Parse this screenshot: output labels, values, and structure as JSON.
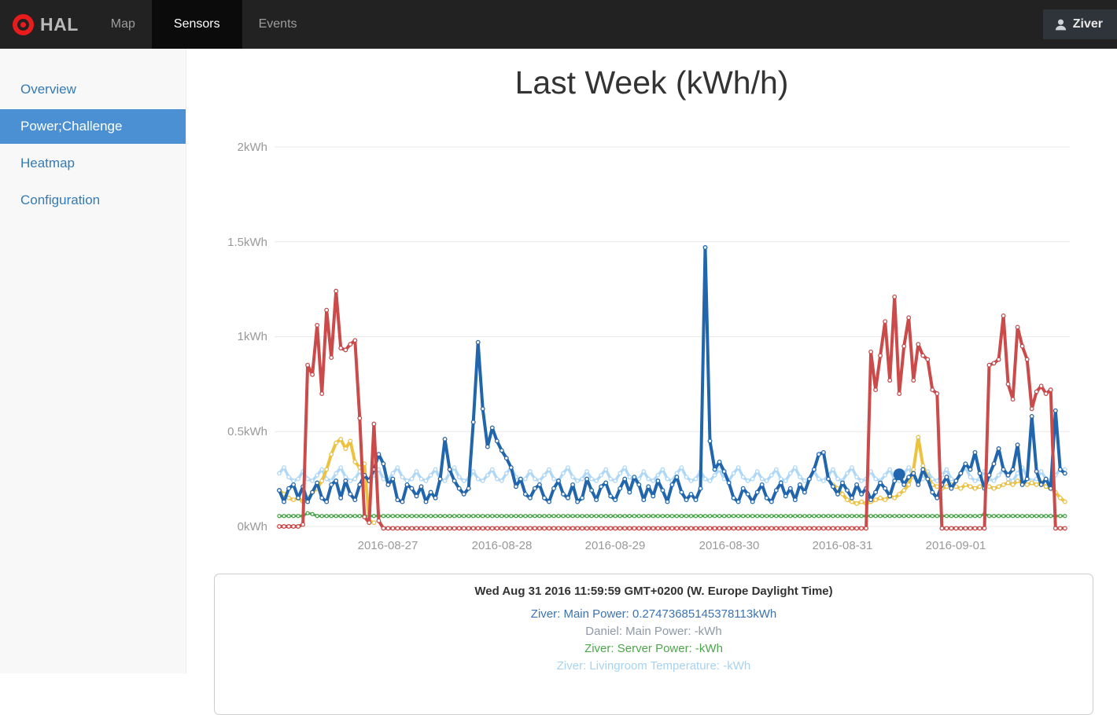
{
  "navbar": {
    "brand": "HAL",
    "items": [
      {
        "label": "Map",
        "active": false
      },
      {
        "label": "Sensors",
        "active": true
      },
      {
        "label": "Events",
        "active": false
      }
    ],
    "user": "Ziver"
  },
  "sidebar": {
    "items": [
      {
        "label": "Overview",
        "active": false
      },
      {
        "label": "Power;Challenge",
        "active": true
      },
      {
        "label": "Heatmap",
        "active": false
      },
      {
        "label": "Configuration",
        "active": false
      }
    ]
  },
  "main": {
    "title": "Last Week (kWh/h)"
  },
  "chart_data": {
    "type": "line",
    "title": "Last Week (kWh/h)",
    "ylim": [
      0,
      2
    ],
    "grid": "horizontal-only",
    "y_ticks": [
      {
        "label": "2kWh",
        "value": 2
      },
      {
        "label": "1.5kWh",
        "value": 1.5
      },
      {
        "label": "1kWh",
        "value": 1
      },
      {
        "label": "0.5kWh",
        "value": 0.5
      },
      {
        "label": "0kWh",
        "value": 0
      }
    ],
    "x_ticks": [
      {
        "label": "2016-08-27",
        "hour": 24
      },
      {
        "label": "2016-08-28",
        "hour": 48
      },
      {
        "label": "2016-08-29",
        "hour": 72
      },
      {
        "label": "2016-08-30",
        "hour": 96
      },
      {
        "label": "2016-08-31",
        "hour": 120
      },
      {
        "label": "2016-09-01",
        "hour": 144
      }
    ],
    "x_unit": "hours, day ticks every 24h",
    "selected_point": {
      "series": "Ziver: Main Power",
      "hour": 132,
      "value": 0.27473685145378113
    },
    "series": [
      {
        "key": "livingroom-temperature",
        "name": "Ziver: Livingroom Temperature",
        "color": "#afd8f8",
        "width": 3.5,
        "marker_r": 2.2,
        "start_hour": 1,
        "values": [
          0.28,
          0.31,
          0.26,
          0.24,
          0.25,
          0.29,
          0.25,
          0.24,
          0.27,
          0.3,
          0.25,
          0.24,
          0.28,
          0.31,
          0.26,
          0.24,
          0.25,
          0.29,
          0.25,
          0.24,
          0.27,
          0.3,
          0.25,
          0.24,
          0.28,
          0.31,
          0.26,
          0.24,
          0.25,
          0.29,
          0.25,
          0.24,
          0.27,
          0.3,
          0.25,
          0.24,
          0.28,
          0.31,
          0.26,
          0.24,
          0.25,
          0.29,
          0.25,
          0.24,
          0.27,
          0.3,
          0.25,
          0.24,
          0.28,
          0.31,
          0.26,
          0.24,
          0.25,
          0.29,
          0.25,
          0.24,
          0.27,
          0.3,
          0.25,
          0.24,
          0.28,
          0.31,
          0.26,
          0.24,
          0.25,
          0.29,
          0.25,
          0.24,
          0.27,
          0.3,
          0.25,
          0.24,
          0.28,
          0.31,
          0.26,
          0.24,
          0.25,
          0.29,
          0.25,
          0.24,
          0.27,
          0.3,
          0.25,
          0.24,
          0.28,
          0.31,
          0.26,
          0.24,
          0.25,
          0.29,
          0.25,
          0.24,
          0.27,
          0.3,
          0.25,
          0.24,
          0.28,
          0.31,
          0.26,
          0.24,
          0.25,
          0.29,
          0.25,
          0.24,
          0.27,
          0.3,
          0.25,
          0.24,
          0.28,
          0.31,
          0.26,
          0.24,
          0.25,
          0.29,
          0.25,
          0.24,
          0.27,
          0.3,
          0.25,
          0.24,
          0.28,
          0.31,
          0.26,
          0.24,
          0.25,
          0.29,
          0.25,
          0.24,
          0.27,
          0.3,
          0.25,
          0.24,
          0.28,
          0.31,
          0.26,
          0.24,
          0.25,
          0.29,
          0.25,
          0.24,
          0.27,
          0.3,
          0.25,
          0.24,
          0.28,
          0.31,
          0.26,
          0.24,
          0.25,
          0.29,
          0.25,
          0.24,
          0.27,
          0.3,
          0.25,
          0.24,
          0.28,
          0.31,
          0.26,
          0.24,
          0.25,
          0.29,
          0.25,
          0.24,
          0.27,
          0.3,
          0.3
        ]
      },
      {
        "key": "server-power",
        "name": "Ziver: Server Power",
        "color": "#4da74d",
        "width": 3,
        "marker_r": 2,
        "start_hour": 1,
        "values": [
          0.055,
          0.055,
          0.055,
          0.055,
          0.055,
          0.055,
          0.07,
          0.065,
          0.055,
          0.055,
          0.055,
          0.055,
          0.055,
          0.055,
          0.055,
          0.055,
          0.055,
          0.055,
          0.055,
          0.055,
          0.055,
          0.055,
          0.055,
          0.055,
          0.055,
          0.055,
          0.055,
          0.055,
          0.055,
          0.055,
          0.055,
          0.055,
          0.055,
          0.055,
          0.055,
          0.055,
          0.055,
          0.055,
          0.055,
          0.055,
          0.055,
          0.055,
          0.055,
          0.055,
          0.055,
          0.055,
          0.055,
          0.055,
          0.055,
          0.055,
          0.055,
          0.055,
          0.055,
          0.055,
          0.055,
          0.055,
          0.055,
          0.055,
          0.055,
          0.055,
          0.055,
          0.055,
          0.055,
          0.055,
          0.055,
          0.055,
          0.055,
          0.055,
          0.055,
          0.055,
          0.055,
          0.055,
          0.055,
          0.055,
          0.055,
          0.055,
          0.055,
          0.055,
          0.055,
          0.055,
          0.055,
          0.055,
          0.055,
          0.055,
          0.055,
          0.055,
          0.055,
          0.055,
          0.055,
          0.055,
          0.055,
          0.055,
          0.055,
          0.055,
          0.055,
          0.055,
          0.055,
          0.055,
          0.055,
          0.055,
          0.055,
          0.055,
          0.055,
          0.055,
          0.055,
          0.055,
          0.055,
          0.055,
          0.055,
          0.055,
          0.055,
          0.055,
          0.055,
          0.055,
          0.055,
          0.055,
          0.055,
          0.055,
          0.055,
          0.055,
          0.055,
          0.055,
          0.055,
          0.055,
          0.055,
          0.055,
          0.055,
          0.055,
          0.055,
          0.055,
          0.055,
          0.055,
          0.055,
          0.055,
          0.055,
          0.055,
          0.055,
          0.055,
          0.055,
          0.055,
          0.055,
          0.055,
          0.055,
          0.055,
          0.055,
          0.055,
          0.055,
          0.055,
          0.055,
          0.065,
          0.055,
          0.055,
          0.055,
          0.055,
          0.055,
          0.055,
          0.055,
          0.055,
          0.055,
          0.055,
          0.055,
          0.055,
          0.055,
          0.055,
          0.055,
          0.055,
          0.055
        ]
      },
      {
        "key": "series-yellow",
        "name": "",
        "color": "#edc240",
        "width": 4,
        "marker_r": 2.3,
        "start_hour": 1,
        "values": [
          0.19,
          0.17,
          0.15,
          0.14,
          0.15,
          0.13,
          0.14,
          0.18,
          0.2,
          0.24,
          0.3,
          0.38,
          0.44,
          0.46,
          0.41,
          0.45,
          0.34,
          0.31,
          0.33,
          0.03,
          0.02,
          null,
          null,
          null,
          null,
          null,
          null,
          null,
          null,
          null,
          null,
          null,
          null,
          null,
          null,
          null,
          null,
          null,
          null,
          null,
          null,
          null,
          null,
          null,
          null,
          null,
          null,
          null,
          null,
          null,
          null,
          null,
          null,
          null,
          null,
          null,
          null,
          null,
          null,
          null,
          null,
          null,
          null,
          null,
          null,
          null,
          null,
          null,
          null,
          null,
          null,
          null,
          null,
          null,
          null,
          null,
          null,
          null,
          null,
          null,
          null,
          null,
          null,
          null,
          null,
          null,
          null,
          null,
          null,
          null,
          null,
          null,
          null,
          null,
          null,
          null,
          null,
          null,
          null,
          null,
          null,
          null,
          null,
          null,
          null,
          null,
          null,
          null,
          null,
          null,
          null,
          null,
          null,
          null,
          null,
          null,
          null,
          0.22,
          0.2,
          0.17,
          0.14,
          0.13,
          0.12,
          0.13,
          0.12,
          0.13,
          0.14,
          0.15,
          0.14,
          0.16,
          0.15,
          0.17,
          0.19,
          0.22,
          0.3,
          0.47,
          0.32,
          0.26,
          0.22,
          0.21,
          0.2,
          0.21,
          0.22,
          0.21,
          0.2,
          0.22,
          0.21,
          0.2,
          0.21,
          0.22,
          0.21,
          0.2,
          0.21,
          0.22,
          0.23,
          0.22,
          0.24,
          0.23,
          0.22,
          0.23,
          0.22,
          0.23,
          0.21,
          0.2,
          0.18,
          0.15,
          0.13
        ]
      },
      {
        "key": "main-power-ziver",
        "name": "Ziver: Main Power",
        "color": "#2166ac",
        "width": 4,
        "marker_r": 2.3,
        "start_hour": 1,
        "values": [
          0.19,
          0.13,
          0.2,
          0.22,
          0.15,
          0.21,
          0.13,
          0.18,
          0.23,
          0.15,
          0.13,
          0.22,
          0.24,
          0.15,
          0.24,
          0.17,
          0.14,
          0.22,
          0.27,
          0.24,
          0.3,
          0.38,
          0.33,
          0.22,
          0.25,
          0.14,
          0.13,
          0.22,
          0.2,
          0.16,
          0.21,
          0.13,
          0.18,
          0.15,
          0.25,
          0.46,
          0.3,
          0.24,
          0.2,
          0.17,
          0.2,
          0.55,
          0.97,
          0.62,
          0.42,
          0.52,
          0.45,
          0.4,
          0.36,
          0.31,
          0.21,
          0.25,
          0.17,
          0.15,
          0.2,
          0.22,
          0.15,
          0.13,
          0.2,
          0.24,
          0.17,
          0.15,
          0.22,
          0.13,
          0.15,
          0.25,
          0.19,
          0.14,
          0.21,
          0.23,
          0.16,
          0.14,
          0.2,
          0.25,
          0.18,
          0.26,
          0.22,
          0.14,
          0.21,
          0.16,
          0.24,
          0.19,
          0.13,
          0.22,
          0.26,
          0.18,
          0.14,
          0.17,
          0.14,
          0.2,
          1.47,
          0.45,
          0.3,
          0.34,
          0.29,
          0.23,
          0.15,
          0.13,
          0.2,
          0.17,
          0.13,
          0.18,
          0.22,
          0.15,
          0.13,
          0.19,
          0.23,
          0.16,
          0.2,
          0.14,
          0.22,
          0.18,
          0.25,
          0.3,
          0.38,
          0.39,
          0.25,
          0.21,
          0.17,
          0.23,
          0.19,
          0.15,
          0.22,
          0.17,
          0.2,
          0.14,
          0.18,
          0.23,
          0.2,
          0.16,
          0.24,
          0.27,
          0.22,
          0.26,
          0.28,
          0.22,
          0.3,
          0.25,
          0.18,
          0.15,
          0.22,
          0.26,
          0.2,
          0.24,
          0.28,
          0.33,
          0.3,
          0.39,
          0.28,
          0.2,
          0.27,
          0.33,
          0.41,
          0.3,
          0.27,
          0.3,
          0.43,
          0.22,
          0.25,
          0.58,
          0.29,
          0.22,
          0.25,
          0.2,
          0.61,
          0.3,
          0.28
        ]
      },
      {
        "key": "series-red",
        "name": "",
        "color": "#cb4b4b",
        "width": 4,
        "marker_r": 2.3,
        "start_hour": 1,
        "values": [
          0,
          0,
          0,
          0,
          0,
          0.01,
          0.85,
          0.8,
          1.06,
          0.7,
          1.14,
          0.89,
          1.24,
          0.94,
          0.93,
          0.96,
          0.98,
          0.57,
          0.05,
          0.02,
          0.54,
          0.03,
          -0.01,
          -0.01,
          -0.01,
          -0.01,
          -0.01,
          -0.01,
          -0.01,
          -0.01,
          -0.01,
          -0.01,
          -0.01,
          -0.01,
          -0.01,
          -0.01,
          -0.01,
          -0.01,
          -0.01,
          -0.01,
          -0.01,
          -0.01,
          -0.01,
          -0.01,
          -0.01,
          -0.01,
          -0.01,
          -0.01,
          -0.01,
          -0.01,
          -0.01,
          -0.01,
          -0.01,
          -0.01,
          -0.01,
          -0.01,
          -0.01,
          -0.01,
          -0.01,
          -0.01,
          -0.01,
          -0.01,
          -0.01,
          -0.01,
          -0.01,
          -0.01,
          -0.01,
          -0.01,
          -0.01,
          -0.01,
          -0.01,
          -0.01,
          -0.01,
          -0.01,
          -0.01,
          -0.01,
          -0.01,
          -0.01,
          -0.01,
          -0.01,
          -0.01,
          -0.01,
          -0.01,
          -0.01,
          -0.01,
          -0.01,
          -0.01,
          -0.01,
          -0.01,
          -0.01,
          -0.01,
          -0.01,
          -0.01,
          -0.01,
          -0.01,
          -0.01,
          -0.01,
          -0.01,
          -0.01,
          -0.01,
          -0.01,
          -0.01,
          -0.01,
          -0.01,
          -0.01,
          -0.01,
          -0.01,
          -0.01,
          -0.01,
          -0.01,
          -0.01,
          -0.01,
          -0.01,
          -0.01,
          -0.01,
          -0.01,
          -0.01,
          -0.01,
          -0.01,
          -0.01,
          -0.01,
          -0.01,
          -0.01,
          -0.01,
          -0.01,
          0.92,
          0.72,
          0.9,
          1.08,
          0.77,
          1.21,
          0.7,
          0.95,
          1.1,
          0.77,
          0.96,
          0.9,
          0.88,
          0.72,
          0.7,
          -0.01,
          -0.01,
          -0.01,
          -0.01,
          -0.01,
          -0.01,
          -0.01,
          -0.01,
          -0.01,
          -0.01,
          0.85,
          0.86,
          0.88,
          1.11,
          0.75,
          0.67,
          1.05,
          0.95,
          0.88,
          0.62,
          0.71,
          0.74,
          0.7,
          0.72,
          -0.01,
          -0.01,
          -0.01
        ]
      }
    ]
  },
  "tooltip": {
    "timestamp": "Wed Aug 31 2016 11:59:59 GMT+0200 (W. Europe Daylight Time)",
    "rows": [
      {
        "label": "Ziver: Main Power: 0.27473685145378113kWh",
        "color": "#3c73b0"
      },
      {
        "label": "Daniel: Main Power: -kWh",
        "color": "#8f9aa6"
      },
      {
        "label": "Ziver: Server Power: -kWh",
        "color": "#4da74d"
      },
      {
        "label": "Ziver: Livingroom Temperature: -kWh",
        "color": "#a7d3f0"
      }
    ]
  }
}
